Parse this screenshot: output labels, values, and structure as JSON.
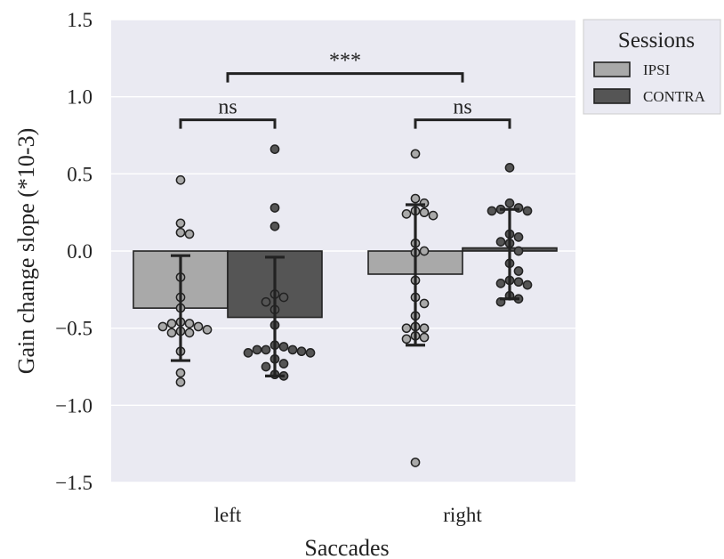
{
  "chart_data": {
    "type": "bar",
    "xlabel": "Saccades",
    "ylabel": "Gain change slope (*10-3)",
    "categories": [
      "left",
      "right"
    ],
    "ylim": [
      -1.5,
      1.5
    ],
    "yticks": [
      1.5,
      1.0,
      0.5,
      0.0,
      -0.5,
      -1.0,
      -1.5
    ],
    "ytick_labels": [
      "1.5",
      "1.0",
      "0.5",
      "0.0",
      "−0.5",
      "−1.0",
      "−1.5"
    ],
    "grid": true,
    "legend_placement": "outside-top-right",
    "legend_title": "Sessions",
    "series": [
      {
        "name": "IPSI",
        "color": "#a9a9a9",
        "values": [
          -0.37,
          -0.15
        ],
        "errors": [
          [
            -0.71,
            -0.03
          ],
          [
            -0.61,
            0.3
          ]
        ],
        "points": [
          [
            0.46,
            0.18,
            0.12,
            0.11,
            -0.17,
            -0.3,
            -0.37,
            -0.47,
            -0.53,
            -0.49,
            -0.53,
            -0.52,
            -0.51,
            -0.49,
            -0.47,
            -0.46,
            -0.65,
            -0.79,
            -0.85
          ],
          [
            0.63,
            0.34,
            0.31,
            0.26,
            0.23,
            0.25,
            0.24,
            0.05,
            -0.01,
            0.0,
            -0.19,
            -0.3,
            -0.34,
            -0.42,
            -0.5,
            -0.49,
            -0.56,
            -0.55,
            -0.57,
            -0.5,
            -1.37
          ]
        ]
      },
      {
        "name": "CONTRA",
        "color": "#555555",
        "values": [
          -0.43,
          0.02
        ],
        "errors": [
          [
            -0.81,
            -0.04
          ],
          [
            -0.31,
            0.27
          ]
        ],
        "points": [
          [
            0.66,
            0.28,
            0.16,
            -0.28,
            -0.3,
            -0.33,
            -0.38,
            -0.48,
            -0.61,
            -0.64,
            -0.65,
            -0.66,
            -0.64,
            -0.64,
            -0.66,
            -0.7,
            -0.73,
            -0.75,
            -0.8,
            -0.81,
            -0.62
          ],
          [
            0.54,
            0.31,
            0.27,
            0.26,
            0.26,
            0.28,
            0.11,
            0.09,
            0.06,
            0.05,
            0.0,
            -0.08,
            -0.13,
            -0.2,
            -0.22,
            -0.21,
            -0.29,
            -0.31,
            -0.33,
            -0.19
          ]
        ]
      }
    ],
    "annotations": [
      {
        "label": "ns",
        "from": [
          0,
          0
        ],
        "to": [
          0,
          1
        ],
        "y": 0.85
      },
      {
        "label": "ns",
        "from": [
          1,
          0
        ],
        "to": [
          1,
          1
        ],
        "y": 0.85
      },
      {
        "label": "***",
        "from": [
          0,
          "center"
        ],
        "to": [
          1,
          "center"
        ],
        "y": 1.15
      }
    ]
  }
}
